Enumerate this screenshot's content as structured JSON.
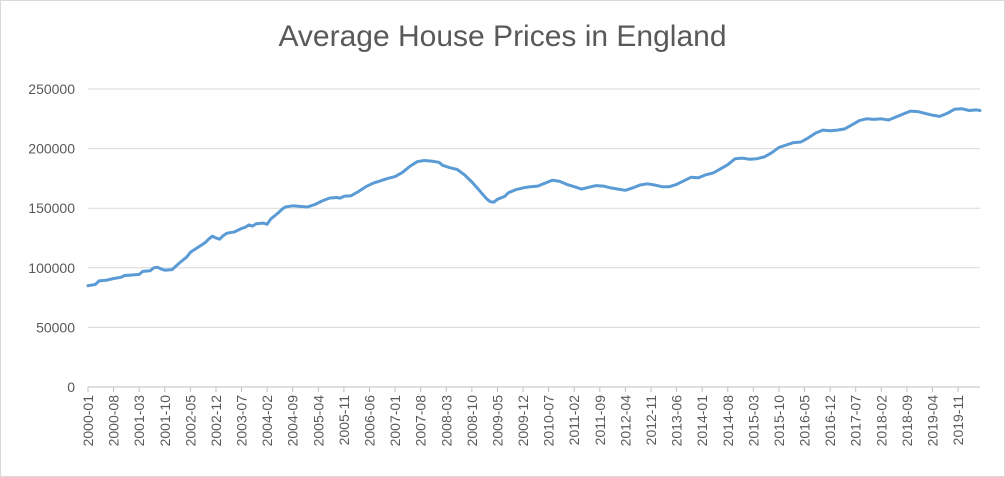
{
  "chart_data": {
    "type": "line",
    "title": "Average House Prices in England",
    "xlabel": "",
    "ylabel": "",
    "ylim": [
      0,
      250000
    ],
    "y_ticks": [
      "0",
      "50000",
      "100000",
      "150000",
      "200000",
      "250000"
    ],
    "x_tick_labels": [
      "2000-01",
      "2000-08",
      "2001-03",
      "2001-10",
      "2002-05",
      "2002-12",
      "2003-07",
      "2004-02",
      "2004-09",
      "2005-04",
      "2005-11",
      "2006-06",
      "2007-01",
      "2007-08",
      "2008-03",
      "2008-10",
      "2009-05",
      "2009-12",
      "2010-07",
      "2011-02",
      "2011-09",
      "2012-04",
      "2012-11",
      "2013-06",
      "2014-01",
      "2014-08",
      "2015-03",
      "2015-10",
      "2016-05",
      "2016-12",
      "2017-07",
      "2018-02",
      "2018-09",
      "2019-04",
      "2019-11"
    ],
    "x_start": "2000-01",
    "x_end": "2020-05",
    "grid": true,
    "legend": "none",
    "color": "#5b9bd5",
    "series": [
      {
        "points": [
          [
            "2000-01",
            85000
          ],
          [
            "2000-03",
            86000
          ],
          [
            "2000-04",
            89000
          ],
          [
            "2000-06",
            89500
          ],
          [
            "2000-08",
            91000
          ],
          [
            "2000-10",
            92000
          ],
          [
            "2000-11",
            93500
          ],
          [
            "2001-01",
            94000
          ],
          [
            "2001-03",
            94500
          ],
          [
            "2001-04",
            97000
          ],
          [
            "2001-06",
            97500
          ],
          [
            "2001-07",
            100000
          ],
          [
            "2001-08",
            100500
          ],
          [
            "2001-09",
            99000
          ],
          [
            "2001-10",
            98000
          ],
          [
            "2001-12",
            98500
          ],
          [
            "2002-02",
            104000
          ],
          [
            "2002-04",
            109000
          ],
          [
            "2002-05",
            113000
          ],
          [
            "2002-07",
            117000
          ],
          [
            "2002-09",
            121000
          ],
          [
            "2002-10",
            124000
          ],
          [
            "2002-11",
            126500
          ],
          [
            "2002-12",
            125000
          ],
          [
            "2003-01",
            124000
          ],
          [
            "2003-02",
            127000
          ],
          [
            "2003-03",
            129000
          ],
          [
            "2003-05",
            130000
          ],
          [
            "2003-07",
            133000
          ],
          [
            "2003-08",
            134000
          ],
          [
            "2003-09",
            136000
          ],
          [
            "2003-10",
            135000
          ],
          [
            "2003-11",
            137000
          ],
          [
            "2004-01",
            137500
          ],
          [
            "2004-02",
            136500
          ],
          [
            "2004-03",
            141000
          ],
          [
            "2004-05",
            146000
          ],
          [
            "2004-06",
            149000
          ],
          [
            "2004-07",
            151000
          ],
          [
            "2004-09",
            152000
          ],
          [
            "2004-11",
            151500
          ],
          [
            "2005-01",
            151000
          ],
          [
            "2005-03",
            153000
          ],
          [
            "2005-05",
            156000
          ],
          [
            "2005-07",
            158500
          ],
          [
            "2005-09",
            159000
          ],
          [
            "2005-10",
            158500
          ],
          [
            "2005-11",
            160000
          ],
          [
            "2006-01",
            160500
          ],
          [
            "2006-03",
            164000
          ],
          [
            "2006-05",
            168000
          ],
          [
            "2006-07",
            171000
          ],
          [
            "2006-09",
            173000
          ],
          [
            "2006-11",
            175000
          ],
          [
            "2007-01",
            176500
          ],
          [
            "2007-03",
            180000
          ],
          [
            "2007-05",
            185000
          ],
          [
            "2007-07",
            189000
          ],
          [
            "2007-09",
            190000
          ],
          [
            "2007-11",
            189500
          ],
          [
            "2008-01",
            188500
          ],
          [
            "2008-02",
            186000
          ],
          [
            "2008-04",
            184000
          ],
          [
            "2008-06",
            182500
          ],
          [
            "2008-08",
            178000
          ],
          [
            "2008-10",
            172000
          ],
          [
            "2008-12",
            165000
          ],
          [
            "2009-02",
            158000
          ],
          [
            "2009-03",
            155500
          ],
          [
            "2009-04",
            155000
          ],
          [
            "2009-05",
            157500
          ],
          [
            "2009-07",
            160000
          ],
          [
            "2009-08",
            163000
          ],
          [
            "2009-10",
            165500
          ],
          [
            "2009-12",
            167000
          ],
          [
            "2010-02",
            168000
          ],
          [
            "2010-04",
            168500
          ],
          [
            "2010-06",
            171000
          ],
          [
            "2010-08",
            173500
          ],
          [
            "2010-10",
            172500
          ],
          [
            "2010-12",
            170000
          ],
          [
            "2011-02",
            168000
          ],
          [
            "2011-04",
            166000
          ],
          [
            "2011-06",
            167500
          ],
          [
            "2011-08",
            169000
          ],
          [
            "2011-10",
            168500
          ],
          [
            "2011-12",
            167000
          ],
          [
            "2012-02",
            166000
          ],
          [
            "2012-04",
            165000
          ],
          [
            "2012-06",
            167000
          ],
          [
            "2012-08",
            169500
          ],
          [
            "2012-10",
            170500
          ],
          [
            "2012-12",
            169500
          ],
          [
            "2013-02",
            168000
          ],
          [
            "2013-04",
            168000
          ],
          [
            "2013-06",
            170000
          ],
          [
            "2013-08",
            173000
          ],
          [
            "2013-10",
            176000
          ],
          [
            "2013-12",
            175500
          ],
          [
            "2014-02",
            178000
          ],
          [
            "2014-04",
            179500
          ],
          [
            "2014-06",
            183000
          ],
          [
            "2014-08",
            186500
          ],
          [
            "2014-10",
            191500
          ],
          [
            "2014-12",
            192000
          ],
          [
            "2015-02",
            191000
          ],
          [
            "2015-04",
            191500
          ],
          [
            "2015-06",
            193000
          ],
          [
            "2015-08",
            196500
          ],
          [
            "2015-10",
            201000
          ],
          [
            "2015-12",
            203000
          ],
          [
            "2016-02",
            205000
          ],
          [
            "2016-04",
            205500
          ],
          [
            "2016-06",
            209000
          ],
          [
            "2016-08",
            213000
          ],
          [
            "2016-10",
            215500
          ],
          [
            "2016-12",
            215000
          ],
          [
            "2017-02",
            215500
          ],
          [
            "2017-04",
            216500
          ],
          [
            "2017-06",
            220000
          ],
          [
            "2017-08",
            223500
          ],
          [
            "2017-10",
            225000
          ],
          [
            "2017-12",
            224500
          ],
          [
            "2018-02",
            225000
          ],
          [
            "2018-04",
            224000
          ],
          [
            "2018-06",
            226500
          ],
          [
            "2018-08",
            229000
          ],
          [
            "2018-10",
            231500
          ],
          [
            "2018-12",
            231000
          ],
          [
            "2019-02",
            229500
          ],
          [
            "2019-04",
            228000
          ],
          [
            "2019-06",
            227000
          ],
          [
            "2019-08",
            229500
          ],
          [
            "2019-10",
            233000
          ],
          [
            "2019-12",
            233500
          ],
          [
            "2020-02",
            232000
          ],
          [
            "2020-04",
            232500
          ],
          [
            "2020-05",
            232000
          ]
        ]
      }
    ]
  }
}
